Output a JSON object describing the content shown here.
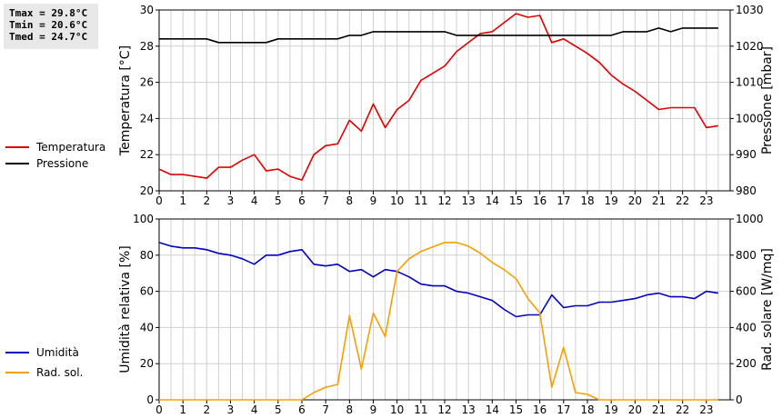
{
  "stats": {
    "tmax": "Tmax = 29.8°C",
    "tmin": "Tmin = 20.6°C",
    "tmed": "Tmed = 24.7°C"
  },
  "legend_top": [
    {
      "name": "Temperatura",
      "color": "#e00000"
    },
    {
      "name": "Pressione",
      "color": "#000000"
    }
  ],
  "legend_bottom": [
    {
      "name": "Umidità",
      "color": "#0000c0"
    },
    {
      "name": "Rad. sol.",
      "color": "#f5a000"
    }
  ],
  "chart_data": [
    {
      "type": "line",
      "ylabel": "Temperatura [°C]",
      "y2label": "Pressione [mbar]",
      "xlim": [
        0,
        24
      ],
      "ylim": [
        20,
        30
      ],
      "y2lim": [
        980,
        1030
      ],
      "xticks": [
        "0",
        "1",
        "2",
        "3",
        "4",
        "5",
        "6",
        "7",
        "8",
        "9",
        "10",
        "11",
        "12",
        "13",
        "14",
        "15",
        "16",
        "17",
        "18",
        "19",
        "20",
        "21",
        "22",
        "23"
      ],
      "yticks": [
        "20",
        "22",
        "24",
        "26",
        "28",
        "30"
      ],
      "y2ticks": [
        "980",
        "990",
        "1000",
        "1010",
        "1020",
        "1030"
      ],
      "grid": true,
      "series": [
        {
          "name": "Temperatura",
          "color": "#e00000",
          "axis": "left",
          "x": [
            0,
            0.5,
            1,
            1.5,
            2,
            2.5,
            3,
            3.5,
            4,
            4.5,
            5,
            5.5,
            6,
            6.5,
            7,
            7.5,
            8,
            8.5,
            9,
            9.5,
            10,
            10.5,
            11,
            11.5,
            12,
            12.5,
            13,
            13.5,
            14,
            14.5,
            15,
            15.5,
            16,
            16.5,
            17,
            17.5,
            18,
            18.5,
            19,
            19.5,
            20,
            20.5,
            21,
            21.5,
            22,
            22.5,
            23,
            23.5
          ],
          "values": [
            21.2,
            20.9,
            20.9,
            20.8,
            20.7,
            21.3,
            21.3,
            21.7,
            22.0,
            21.1,
            21.2,
            20.8,
            20.6,
            22.0,
            22.5,
            22.6,
            23.9,
            23.3,
            24.8,
            23.5,
            24.5,
            25.0,
            26.1,
            26.5,
            26.9,
            27.7,
            28.2,
            28.7,
            28.8,
            29.3,
            29.8,
            29.6,
            29.7,
            28.2,
            28.4,
            28.0,
            27.6,
            27.1,
            26.4,
            25.9,
            25.5,
            25.0,
            24.5,
            24.6,
            24.6,
            24.6,
            23.5,
            23.6
          ]
        },
        {
          "name": "Pressione",
          "color": "#000000",
          "axis": "right",
          "x": [
            0,
            0.5,
            1,
            1.5,
            2,
            2.5,
            3,
            3.5,
            4,
            4.5,
            5,
            5.5,
            6,
            6.5,
            7,
            7.5,
            8,
            8.5,
            9,
            9.5,
            10,
            10.5,
            11,
            11.5,
            12,
            12.5,
            13,
            13.5,
            14,
            14.5,
            15,
            15.5,
            16,
            16.5,
            17,
            17.5,
            18,
            18.5,
            19,
            19.5,
            20,
            20.5,
            21,
            21.5,
            22,
            22.5,
            23,
            23.5
          ],
          "values": [
            1022,
            1022,
            1022,
            1022,
            1022,
            1021,
            1021,
            1021,
            1021,
            1021,
            1022,
            1022,
            1022,
            1022,
            1022,
            1022,
            1023,
            1023,
            1024,
            1024,
            1024,
            1024,
            1024,
            1024,
            1024,
            1023,
            1023,
            1023,
            1023,
            1023,
            1023,
            1023,
            1023,
            1023,
            1023,
            1023,
            1023,
            1023,
            1023,
            1024,
            1024,
            1024,
            1025,
            1024,
            1025,
            1025,
            1025,
            1025
          ]
        }
      ]
    },
    {
      "type": "line",
      "ylabel": "Umidità relativa [%]",
      "y2label": "Rad. solare [W/mq]",
      "xlim": [
        0,
        24
      ],
      "ylim": [
        0,
        100
      ],
      "y2lim": [
        0,
        1000
      ],
      "xticks": [
        "0",
        "1",
        "2",
        "3",
        "4",
        "5",
        "6",
        "7",
        "8",
        "9",
        "10",
        "11",
        "12",
        "13",
        "14",
        "15",
        "16",
        "17",
        "18",
        "19",
        "20",
        "21",
        "22",
        "23"
      ],
      "yticks": [
        "0",
        "20",
        "40",
        "60",
        "80",
        "100"
      ],
      "y2ticks": [
        "0",
        "200",
        "400",
        "600",
        "800",
        "1000"
      ],
      "grid": true,
      "series": [
        {
          "name": "Umidità",
          "color": "#0000c0",
          "axis": "left",
          "x": [
            0,
            0.5,
            1,
            1.5,
            2,
            2.5,
            3,
            3.5,
            4,
            4.5,
            5,
            5.5,
            6,
            6.5,
            7,
            7.5,
            8,
            8.5,
            9,
            9.5,
            10,
            10.5,
            11,
            11.5,
            12,
            12.5,
            13,
            13.5,
            14,
            14.5,
            15,
            15.5,
            16,
            16.5,
            17,
            17.5,
            18,
            18.5,
            19,
            19.5,
            20,
            20.5,
            21,
            21.5,
            22,
            22.5,
            23,
            23.5
          ],
          "values": [
            87,
            85,
            84,
            84,
            83,
            81,
            80,
            78,
            75,
            80,
            80,
            82,
            83,
            75,
            74,
            75,
            71,
            72,
            68,
            72,
            71,
            68,
            64,
            63,
            63,
            60,
            59,
            57,
            55,
            50,
            46,
            47,
            47,
            58,
            51,
            52,
            52,
            54,
            54,
            55,
            56,
            58,
            59,
            57,
            57,
            56,
            60,
            59
          ]
        },
        {
          "name": "Rad. sol.",
          "color": "#f5a000",
          "axis": "right",
          "x": [
            0,
            0.5,
            1,
            1.5,
            2,
            2.5,
            3,
            3.5,
            4,
            4.5,
            5,
            5.5,
            6,
            6.5,
            7,
            7.5,
            8,
            8.5,
            9,
            9.5,
            10,
            10.5,
            11,
            11.5,
            12,
            12.5,
            13,
            13.5,
            14,
            14.5,
            15,
            15.5,
            16,
            16.5,
            17,
            17.5,
            18,
            18.5,
            19,
            19.5,
            20,
            20.5,
            21,
            21.5,
            22,
            22.5,
            23,
            23.5
          ],
          "values": [
            0,
            0,
            0,
            0,
            0,
            0,
            0,
            0,
            0,
            0,
            0,
            0,
            0,
            40,
            70,
            85,
            465,
            170,
            480,
            350,
            710,
            780,
            820,
            845,
            870,
            870,
            850,
            810,
            760,
            720,
            670,
            560,
            480,
            70,
            290,
            40,
            30,
            0,
            0,
            0,
            0,
            0,
            0,
            0,
            0,
            0,
            0,
            0
          ]
        }
      ]
    }
  ]
}
